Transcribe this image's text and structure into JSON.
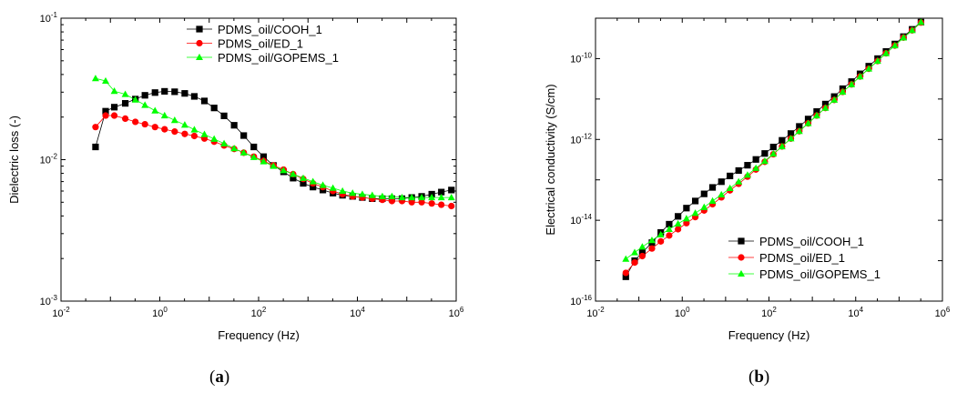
{
  "panels": [
    {
      "label_open": "(",
      "label_letter": "a",
      "label_close": ")"
    },
    {
      "label_open": "(",
      "label_letter": "b",
      "label_close": ")"
    }
  ],
  "chart_data": [
    {
      "type": "scatter",
      "title": "",
      "xlabel": "Frequency (Hz)",
      "ylabel": "Dielectric loss (-)",
      "xscale": "log",
      "yscale": "log",
      "xlim": [
        0.01,
        1000000
      ],
      "ylim": [
        0.001,
        0.1
      ],
      "x_ticks": [
        {
          "base": "10",
          "exp": "-2"
        },
        {
          "base": "10",
          "exp": "0"
        },
        {
          "base": "10",
          "exp": "2"
        },
        {
          "base": "10",
          "exp": "4"
        },
        {
          "base": "10",
          "exp": "6"
        }
      ],
      "y_ticks": [
        {
          "base": "10",
          "exp": "-3"
        },
        {
          "base": "10",
          "exp": "-2"
        },
        {
          "base": "10",
          "exp": "-1"
        }
      ],
      "grid": false,
      "legend_position": "top-right",
      "series": [
        {
          "name": "PDMS_oil/COOH_1",
          "color": "#000000",
          "marker": "square",
          "x": [
            0.05,
            0.08,
            0.12,
            0.2,
            0.32,
            0.5,
            0.8,
            1.25,
            2,
            3.2,
            5,
            8,
            12.6,
            20,
            32,
            50,
            80,
            126,
            200,
            320,
            500,
            800,
            1260,
            2000,
            3200,
            5000,
            8000,
            12600,
            20000,
            32000,
            50000,
            80000,
            126000,
            200000,
            320000,
            500000,
            800000
          ],
          "y": [
            0.0123,
            0.022,
            0.0235,
            0.025,
            0.0268,
            0.0285,
            0.0298,
            0.0304,
            0.0302,
            0.0294,
            0.028,
            0.026,
            0.0232,
            0.0204,
            0.0175,
            0.0148,
            0.0123,
            0.0105,
            0.0091,
            0.0082,
            0.0074,
            0.0068,
            0.0064,
            0.0061,
            0.0058,
            0.0056,
            0.0055,
            0.0054,
            0.0053,
            0.0053,
            0.0053,
            0.0053,
            0.0054,
            0.0055,
            0.0057,
            0.0059,
            0.0061
          ]
        },
        {
          "name": "PDMS_oil/ED_1",
          "color": "#ff0000",
          "marker": "circle",
          "x": [
            0.05,
            0.08,
            0.12,
            0.2,
            0.32,
            0.5,
            0.8,
            1.25,
            2,
            3.2,
            5,
            8,
            12.6,
            20,
            32,
            50,
            80,
            126,
            200,
            320,
            500,
            800,
            1260,
            2000,
            3200,
            5000,
            8000,
            12600,
            20000,
            32000,
            50000,
            80000,
            126000,
            200000,
            320000,
            500000,
            800000
          ],
          "y": [
            0.017,
            0.0205,
            0.0205,
            0.0195,
            0.0185,
            0.0178,
            0.017,
            0.0164,
            0.0158,
            0.0152,
            0.0147,
            0.0141,
            0.0134,
            0.0126,
            0.0119,
            0.0112,
            0.0105,
            0.0098,
            0.0091,
            0.0085,
            0.0079,
            0.0073,
            0.0068,
            0.0064,
            0.006,
            0.0057,
            0.0055,
            0.0054,
            0.0053,
            0.0052,
            0.0051,
            0.0051,
            0.005,
            0.005,
            0.0049,
            0.0048,
            0.0047
          ]
        },
        {
          "name": "PDMS_oil/GOPEMS_1",
          "color": "#00ff00",
          "marker": "triangle",
          "x": [
            0.05,
            0.08,
            0.12,
            0.2,
            0.32,
            0.5,
            0.8,
            1.25,
            2,
            3.2,
            5,
            8,
            12.6,
            20,
            32,
            50,
            80,
            126,
            200,
            320,
            500,
            800,
            1260,
            2000,
            3200,
            5000,
            8000,
            12600,
            20000,
            32000,
            50000,
            80000,
            126000,
            200000,
            320000,
            500000,
            800000
          ],
          "y": [
            0.0375,
            0.036,
            0.0305,
            0.029,
            0.0265,
            0.0243,
            0.0222,
            0.0205,
            0.019,
            0.0176,
            0.0163,
            0.0151,
            0.014,
            0.013,
            0.012,
            0.0112,
            0.0104,
            0.0097,
            0.009,
            0.0084,
            0.0079,
            0.0074,
            0.007,
            0.0066,
            0.0063,
            0.006,
            0.0058,
            0.0057,
            0.0056,
            0.0055,
            0.0055,
            0.0054,
            0.0054,
            0.0054,
            0.0054,
            0.0054,
            0.0054
          ]
        }
      ]
    },
    {
      "type": "scatter",
      "title": "",
      "xlabel": "Frequency (Hz)",
      "ylabel": "Electrical conductivity (S/cm)",
      "xscale": "log",
      "yscale": "log",
      "xlim": [
        0.01,
        1000000
      ],
      "ylim": [
        1e-16,
        1e-09
      ],
      "x_ticks": [
        {
          "base": "10",
          "exp": "-2"
        },
        {
          "base": "10",
          "exp": "0"
        },
        {
          "base": "10",
          "exp": "2"
        },
        {
          "base": "10",
          "exp": "4"
        },
        {
          "base": "10",
          "exp": "6"
        }
      ],
      "y_ticks": [
        {
          "base": "10",
          "exp": "-16"
        },
        {
          "base": "10",
          "exp": "-14"
        },
        {
          "base": "10",
          "exp": "-12"
        },
        {
          "base": "10",
          "exp": "-10"
        }
      ],
      "grid": false,
      "legend_position": "bottom-right",
      "series": [
        {
          "name": "PDMS_oil/COOH_1",
          "color": "#000000",
          "marker": "square",
          "x": [
            0.05,
            0.08,
            0.12,
            0.2,
            0.32,
            0.5,
            0.8,
            1.25,
            2,
            3.2,
            5,
            8,
            12.6,
            20,
            32,
            50,
            80,
            126,
            200,
            320,
            500,
            800,
            1260,
            2000,
            3200,
            5000,
            8000,
            12600,
            20000,
            32000,
            50000,
            80000,
            126000,
            200000,
            320000
          ],
          "y": [
            4e-16,
            1e-15,
            1.6e-15,
            2.8e-15,
            5e-15,
            8e-15,
            1.25e-14,
            2e-14,
            3e-14,
            4.5e-14,
            6.5e-14,
            9e-14,
            1.25e-13,
            1.7e-13,
            2.3e-13,
            3.2e-13,
            4.5e-13,
            6.5e-13,
            9.5e-13,
            1.4e-12,
            2.1e-12,
            3.2e-12,
            4.9e-12,
            7.5e-12,
            1.15e-11,
            1.8e-11,
            2.7e-11,
            4.2e-11,
            6.5e-11,
            1e-10,
            1.5e-10,
            2.3e-10,
            3.5e-10,
            5.3e-10,
            8e-10
          ]
        },
        {
          "name": "PDMS_oil/ED_1",
          "color": "#ff0000",
          "marker": "circle",
          "x": [
            0.05,
            0.08,
            0.12,
            0.2,
            0.32,
            0.5,
            0.8,
            1.25,
            2,
            3.2,
            5,
            8,
            12.6,
            20,
            32,
            50,
            80,
            126,
            200,
            320,
            500,
            800,
            1260,
            2000,
            3200,
            5000,
            8000,
            12600,
            20000,
            32000,
            50000,
            80000,
            126000,
            200000,
            320000
          ],
          "y": [
            5e-16,
            9e-16,
            1.3e-15,
            2e-15,
            3e-15,
            4.2e-15,
            6e-15,
            8.5e-15,
            1.2e-14,
            1.75e-14,
            2.5e-14,
            3.7e-14,
            5.5e-14,
            8e-14,
            1.2e-13,
            1.8e-13,
            2.8e-13,
            4.3e-13,
            6.7e-13,
            1.05e-12,
            1.6e-12,
            2.5e-12,
            3.9e-12,
            6e-12,
            9.5e-12,
            1.5e-11,
            2.3e-11,
            3.6e-11,
            5.6e-11,
            8.7e-11,
            1.35e-10,
            2.1e-10,
            3.3e-10,
            5e-10,
            7.8e-10
          ]
        },
        {
          "name": "PDMS_oil/GOPEMS_1",
          "color": "#00ff00",
          "marker": "triangle",
          "x": [
            0.05,
            0.08,
            0.12,
            0.2,
            0.32,
            0.5,
            0.8,
            1.25,
            2,
            3.2,
            5,
            8,
            12.6,
            20,
            32,
            50,
            80,
            126,
            200,
            320,
            500,
            800,
            1260,
            2000,
            3200,
            5000,
            8000,
            12600,
            20000,
            32000,
            50000,
            80000,
            126000,
            200000,
            320000
          ],
          "y": [
            1.1e-15,
            1.6e-15,
            2.2e-15,
            3.2e-15,
            4.4e-15,
            6e-15,
            8.2e-15,
            1.1e-14,
            1.5e-14,
            2.1e-14,
            3e-14,
            4.3e-14,
            6.2e-14,
            9e-14,
            1.32e-13,
            1.95e-13,
            2.9e-13,
            4.4e-13,
            6.7e-13,
            1.05e-12,
            1.6e-12,
            2.5e-12,
            3.9e-12,
            6e-12,
            9.5e-12,
            1.5e-11,
            2.3e-11,
            3.6e-11,
            5.6e-11,
            8.7e-11,
            1.35e-10,
            2.1e-10,
            3.3e-10,
            5e-10,
            8e-10
          ]
        }
      ]
    }
  ]
}
